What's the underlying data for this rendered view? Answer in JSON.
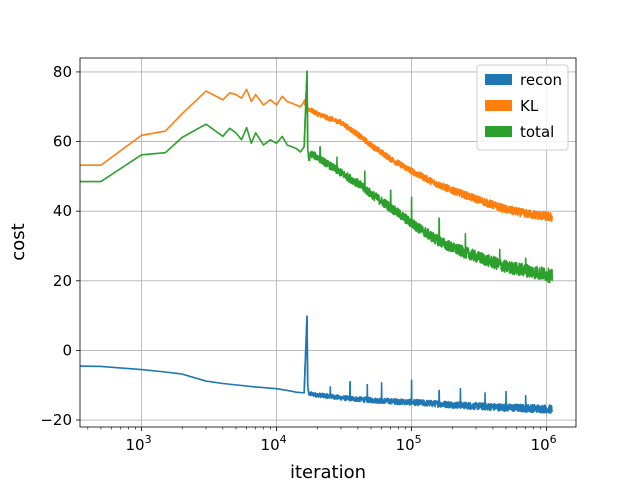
{
  "chart_data": {
    "type": "line",
    "title": "",
    "xlabel": "iteration",
    "ylabel": "cost",
    "xscale": "log",
    "xlim": [
      350,
      1650000
    ],
    "ylim": [
      -22,
      84
    ],
    "grid": true,
    "legend_position": "top-right",
    "x_ticks": [
      {
        "value": 1000,
        "base": "10",
        "exp": "3"
      },
      {
        "value": 10000,
        "base": "10",
        "exp": "4"
      },
      {
        "value": 100000,
        "base": "10",
        "exp": "5"
      },
      {
        "value": 1000000,
        "base": "10",
        "exp": "6"
      }
    ],
    "y_ticks": [
      {
        "value": 80,
        "label": "80"
      },
      {
        "value": 60,
        "label": "60"
      },
      {
        "value": 40,
        "label": "40"
      },
      {
        "value": 20,
        "label": "20"
      },
      {
        "value": 0,
        "label": "0"
      },
      {
        "value": -20,
        "label": "−20"
      }
    ],
    "series": [
      {
        "name": "recon",
        "color": "#1f77b4",
        "x": [
          350,
          500,
          1000,
          1500,
          2000,
          3000,
          4000,
          5000,
          7000,
          10000,
          12000,
          14000,
          16000,
          16800,
          17000,
          17300,
          18000,
          20000,
          25000,
          30000,
          40000,
          50000,
          70000,
          100000,
          150000,
          200000,
          300000,
          500000,
          700000,
          1000000,
          1100000
        ],
        "values": [
          -4.5,
          -4.6,
          -5.5,
          -6.2,
          -6.8,
          -8.8,
          -9.5,
          -9.9,
          -10.5,
          -11.0,
          -11.5,
          -12.0,
          -12.2,
          9.8,
          -10.0,
          -12.5,
          -12.5,
          -12.8,
          -13.2,
          -13.6,
          -14.0,
          -14.3,
          -14.6,
          -14.9,
          -15.3,
          -15.6,
          -16.0,
          -16.4,
          -16.6,
          -16.8,
          -16.9
        ],
        "noise": 1.2,
        "spikes": [
          [
            11500,
            -9.0
          ],
          [
            25000,
            -10.5
          ],
          [
            35000,
            -9.0
          ],
          [
            47000,
            -9.8
          ],
          [
            60000,
            -9.3
          ],
          [
            100000,
            -8.5
          ],
          [
            160000,
            -11.5
          ],
          [
            230000,
            -11.0
          ],
          [
            350000,
            -12.2
          ],
          [
            500000,
            -11.8
          ],
          [
            700000,
            -13.0
          ]
        ]
      },
      {
        "name": "KL",
        "color": "#ff7f0e",
        "x": [
          350,
          500,
          1000,
          1500,
          2000,
          3000,
          4000,
          4500,
          5000,
          5500,
          6000,
          6500,
          7000,
          8000,
          9000,
          10000,
          11000,
          12000,
          14000,
          15000,
          16000,
          17000,
          18000,
          20000,
          25000,
          30000,
          40000,
          50000,
          70000,
          100000,
          150000,
          200000,
          300000,
          500000,
          700000,
          1000000,
          1100000
        ],
        "values": [
          53.2,
          53.2,
          61.8,
          63.0,
          68.0,
          74.5,
          72.0,
          74.0,
          73.5,
          72.5,
          75.0,
          71.5,
          73.5,
          70.5,
          72.0,
          70.5,
          73.0,
          71.5,
          70.5,
          70.0,
          71.5,
          69.5,
          69.0,
          68.0,
          66.5,
          65.5,
          62.0,
          59.0,
          55.0,
          51.5,
          48.0,
          46.0,
          43.5,
          40.5,
          39.3,
          38.5,
          38.2
        ],
        "noise": 1.3,
        "spikes": []
      },
      {
        "name": "total",
        "color": "#2ca02c",
        "x": [
          350,
          500,
          1000,
          1500,
          2000,
          3000,
          4000,
          4500,
          5000,
          5500,
          6000,
          6500,
          7000,
          8000,
          9000,
          10000,
          11000,
          12000,
          14000,
          15000,
          16000,
          16800,
          17000,
          17300,
          18000,
          20000,
          25000,
          30000,
          40000,
          50000,
          70000,
          100000,
          150000,
          200000,
          300000,
          500000,
          700000,
          1000000,
          1100000
        ],
        "values": [
          48.5,
          48.5,
          56.2,
          56.8,
          61.2,
          65.0,
          61.5,
          63.8,
          62.5,
          60.5,
          64.0,
          59.5,
          62.5,
          59.0,
          60.5,
          59.5,
          61.5,
          59.0,
          58.0,
          57.0,
          58.5,
          80.0,
          58.0,
          55.0,
          56.5,
          55.5,
          53.0,
          51.0,
          48.0,
          45.0,
          41.0,
          36.5,
          32.0,
          29.5,
          27.0,
          24.0,
          23.0,
          21.8,
          21.2
        ],
        "noise": 2.0,
        "spikes": [
          [
            21000,
            58.5
          ],
          [
            28000,
            55.5
          ],
          [
            45000,
            51.5
          ],
          [
            70000,
            46.0
          ],
          [
            100000,
            44.0
          ],
          [
            160000,
            38.0
          ],
          [
            250000,
            33.5
          ],
          [
            450000,
            29.0
          ],
          [
            700000,
            26.5
          ]
        ]
      }
    ]
  }
}
